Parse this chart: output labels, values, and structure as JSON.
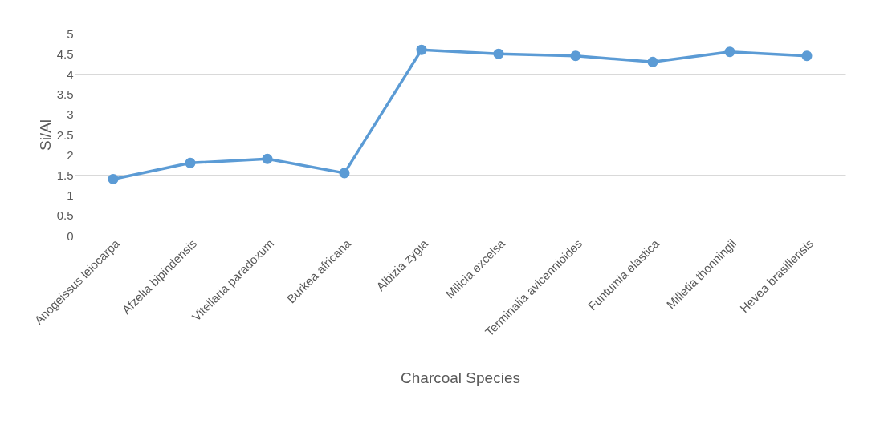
{
  "chart_data": {
    "type": "line",
    "xlabel": "Charcoal Species",
    "ylabel": "Si/Al",
    "categories": [
      "Anogeissus leiocarpa",
      "Afzelia bipindensis",
      "Vitellaria paradoxum",
      "Burkea africana",
      "Albizia zygia",
      "Milicia excelsa",
      "Terminalia avicennioides",
      "Funtumia elastica",
      "Milletia thonningii",
      "Hevea brasiliensis"
    ],
    "series": [
      {
        "color": "#5b9bd5",
        "values": [
          1.4,
          1.8,
          1.9,
          1.55,
          4.6,
          4.5,
          4.45,
          4.3,
          4.55,
          4.45
        ]
      }
    ],
    "ylim": [
      0,
      5
    ],
    "yticks": [
      0,
      0.5,
      1,
      1.5,
      2,
      2.5,
      3,
      3.5,
      4,
      4.5,
      5
    ],
    "grid": "y",
    "marker": "circle",
    "line_style": "solid",
    "legend": false
  }
}
